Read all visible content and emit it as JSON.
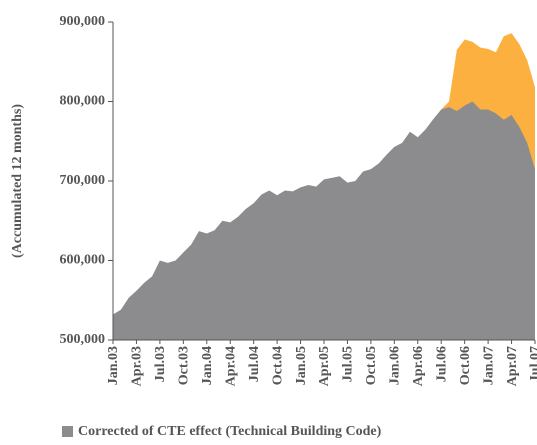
{
  "chart_data": {
    "type": "area",
    "y_label": "(Accumulated 12 months)",
    "categories": [
      "Jan.03",
      null,
      null,
      "Apr.03",
      null,
      null,
      "Jul.03",
      null,
      null,
      "Oct.03",
      null,
      null,
      "Jan.04",
      null,
      null,
      "Apr.04",
      null,
      null,
      "Jul.04",
      null,
      null,
      "Oct.04",
      null,
      null,
      "Jan.05",
      null,
      null,
      "Apr.05",
      null,
      null,
      "Jul.05",
      null,
      null,
      "Oct.05",
      null,
      null,
      "Jan.06",
      null,
      null,
      "Apr.06",
      null,
      null,
      "Jul.06",
      null,
      null,
      "Oct.06",
      null,
      null,
      "Jan.07",
      null,
      null,
      "Apr.07",
      null,
      null,
      "Jul.07"
    ],
    "series": [
      {
        "name": "Corrected of CTE effect (Technical Building Code)",
        "color": "#8c8c8e",
        "values": [
          532000,
          538000,
          553000,
          562000,
          572000,
          580000,
          600000,
          597000,
          600000,
          610000,
          620000,
          637000,
          634000,
          638000,
          650000,
          648000,
          655000,
          665000,
          672000,
          683000,
          688000,
          682000,
          688000,
          687000,
          692000,
          695000,
          693000,
          702000,
          704000,
          706000,
          698000,
          700000,
          712000,
          715000,
          722000,
          733000,
          743000,
          748000,
          762000,
          755000,
          765000,
          778000,
          790000,
          793000,
          788000,
          795000,
          800000,
          790000,
          790000,
          785000,
          777000,
          783000,
          768000,
          748000,
          715000
        ]
      },
      {
        "color": "#fbb040",
        "values": [
          null,
          null,
          null,
          null,
          null,
          null,
          null,
          null,
          null,
          null,
          null,
          null,
          null,
          null,
          null,
          null,
          null,
          null,
          null,
          null,
          null,
          null,
          null,
          null,
          null,
          null,
          null,
          null,
          null,
          null,
          null,
          null,
          null,
          null,
          null,
          null,
          null,
          null,
          null,
          null,
          null,
          null,
          790000,
          800000,
          865000,
          878000,
          875000,
          868000,
          866000,
          862000,
          882000,
          886000,
          872000,
          852000,
          818000
        ]
      }
    ],
    "ylim": [
      500000,
      900000
    ],
    "yticks": [
      {
        "value": 500000,
        "label": "500,000"
      },
      {
        "value": 600000,
        "label": "600,000"
      },
      {
        "value": 700000,
        "label": "700,000"
      },
      {
        "value": 800000,
        "label": "800,000"
      },
      {
        "value": 900000,
        "label": "900,000"
      }
    ]
  }
}
